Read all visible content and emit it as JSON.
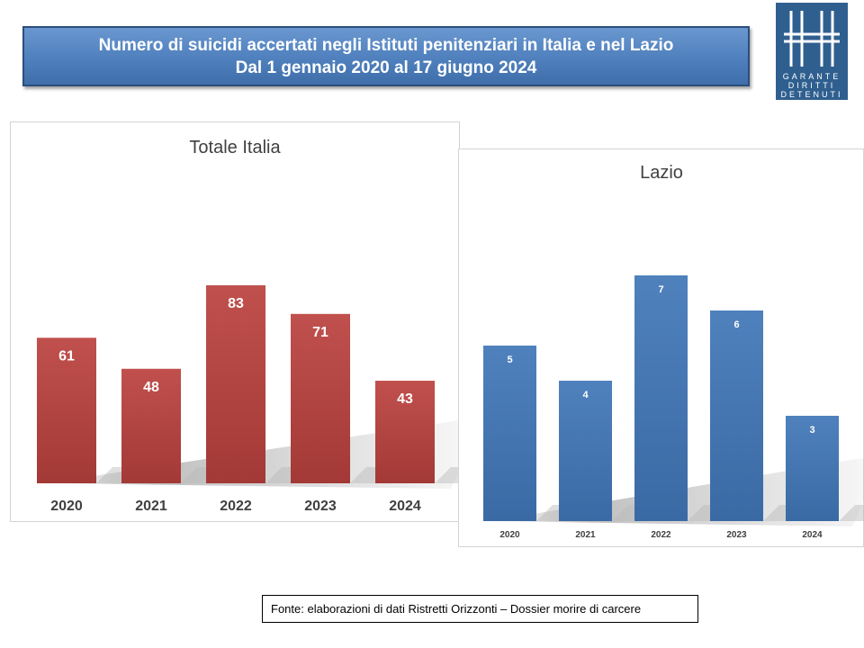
{
  "header": {
    "line1": "Numero di suicidi accertati negli Istituti penitenziari in Italia e nel Lazio",
    "line2": "Dal 1 gennaio 2020 al 17 giugno 2024"
  },
  "logo": {
    "line1": "GARANTE",
    "line2": "DIRITTI",
    "line3": "DETENUTI"
  },
  "footer": {
    "source": "Fonte: elaborazioni di dati Ristretti Orizzonti – Dossier morire di carcere"
  },
  "colors": {
    "italia_bar": "#c0504d",
    "lazio_bar": "#4f81bd",
    "title_bg": "#4f80bd"
  },
  "chart_data": [
    {
      "type": "bar",
      "title": "Totale Italia",
      "categories": [
        "2020",
        "2021",
        "2022",
        "2023",
        "2024"
      ],
      "values": [
        61,
        48,
        83,
        71,
        43
      ],
      "ylim": [
        0,
        100
      ],
      "grid": false,
      "legend": "none"
    },
    {
      "type": "bar",
      "title": "Lazio",
      "categories": [
        "2020",
        "2021",
        "2022",
        "2023",
        "2024"
      ],
      "values": [
        5,
        4,
        7,
        6,
        3
      ],
      "ylim": [
        0,
        8
      ],
      "grid": false,
      "legend": "none"
    }
  ]
}
